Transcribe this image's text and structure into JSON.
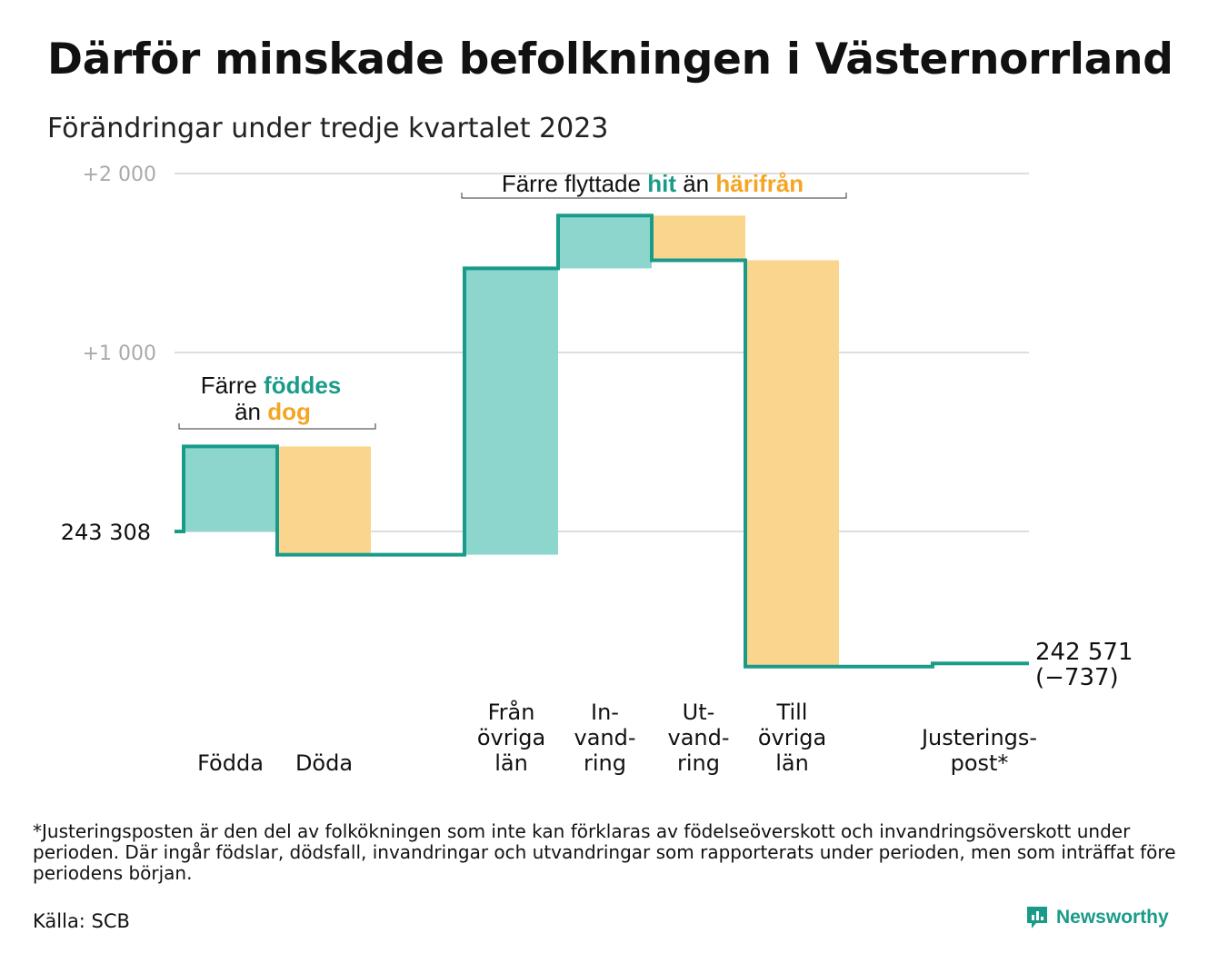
{
  "title": "Därför minskade befolkningen i Västernorrland",
  "subtitle": "Förändringar under tredje kvartalet 2023",
  "footnote": "*Justeringsposten är den del av folkökningen som inte kan förklaras av födelseöverskott och invandringsöverskott under perioden. Där ingår födslar, dödsfall, invandringar och utvandringar som rapporterats under perioden, men som inträffat före periodens början.",
  "source": "Källa: SCB",
  "brand": "Newsworthy",
  "colors": {
    "teal_line": "#1a9b8a",
    "teal_fill": "#8dd6cd",
    "orange_fill": "#fad58d",
    "orange_text": "#f5a523",
    "grid": "#dddddd",
    "tick": "#aaaaaa"
  },
  "annotations": {
    "births_deaths": {
      "line1_prefix": "Färre ",
      "line1_highlight": "föddes",
      "line2_prefix": "än ",
      "line2_highlight": "dog"
    },
    "migration": {
      "prefix": "Färre flyttade ",
      "highlight1": "hit",
      "middle": " än ",
      "highlight2": "härifrån"
    }
  },
  "chart_data": {
    "type": "waterfall",
    "start_label": "243 308",
    "start_value": 243308,
    "end_label": "242 571",
    "end_change_label": "(−737)",
    "end_value": 242571,
    "yticks": [
      {
        "value": 1000,
        "label": "+1 000"
      },
      {
        "value": 2000,
        "label": "+2 000"
      }
    ],
    "ylim": [
      -800,
      2000
    ],
    "steps": [
      {
        "label": [
          "Födda"
        ],
        "change": 475,
        "kind": "in"
      },
      {
        "label": [
          "Döda"
        ],
        "change": -605,
        "kind": "out"
      },
      {
        "label": [],
        "change": 0,
        "kind": "gap"
      },
      {
        "label": [
          "Från",
          "övriga",
          "län"
        ],
        "change": 1600,
        "kind": "in"
      },
      {
        "label": [
          "In-",
          "vand-",
          "ring"
        ],
        "change": 295,
        "kind": "in"
      },
      {
        "label": [
          "Ut-",
          "vand-",
          "ring"
        ],
        "change": -250,
        "kind": "out"
      },
      {
        "label": [
          "Till",
          "övriga",
          "län"
        ],
        "change": -2270,
        "kind": "out"
      },
      {
        "label": [],
        "change": 0,
        "kind": "gap"
      },
      {
        "label": [
          "Justerings-",
          "post*"
        ],
        "change": 18,
        "kind": "adj"
      }
    ]
  }
}
